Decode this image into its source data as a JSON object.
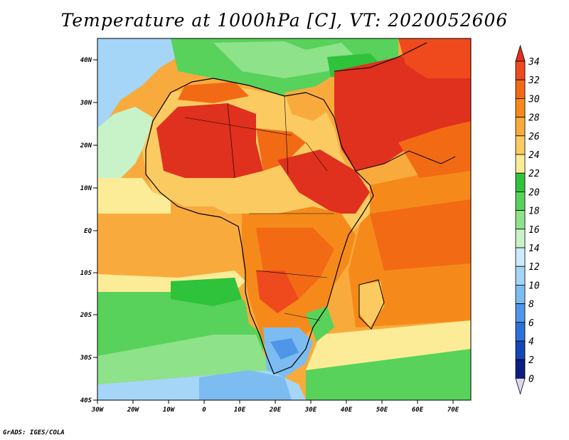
{
  "title": "Temperature at 1000hPa [C], VT: 2020052606",
  "credit": "GrADS: IGES/COLA",
  "map": {
    "lon_range": [
      -30,
      75
    ],
    "lat_range": [
      -40,
      45
    ],
    "lat_ticks": [
      "40N",
      "30N",
      "20N",
      "10N",
      "EQ",
      "10S",
      "20S",
      "30S",
      "40S"
    ],
    "lon_ticks": [
      "30W",
      "20W",
      "10W",
      "0",
      "10E",
      "20E",
      "30E",
      "40E",
      "50E",
      "60E",
      "70E"
    ]
  },
  "colorbar": {
    "labels": [
      "34",
      "32",
      "30",
      "28",
      "26",
      "24",
      "22",
      "20",
      "18",
      "16",
      "14",
      "12",
      "10",
      "8",
      "6",
      "4",
      "2",
      "0"
    ],
    "colors": [
      "#e0301e",
      "#ee4a1e",
      "#f26a14",
      "#f58a1a",
      "#f8ab3c",
      "#fbcb62",
      "#fdec97",
      "#2fc23b",
      "#58d25a",
      "#8ee28a",
      "#c8f3c8",
      "#cdebfa",
      "#a5d5f7",
      "#7cbcf0",
      "#4f96e8",
      "#2a72d8",
      "#1446b4",
      "#0c1e82"
    ]
  }
}
